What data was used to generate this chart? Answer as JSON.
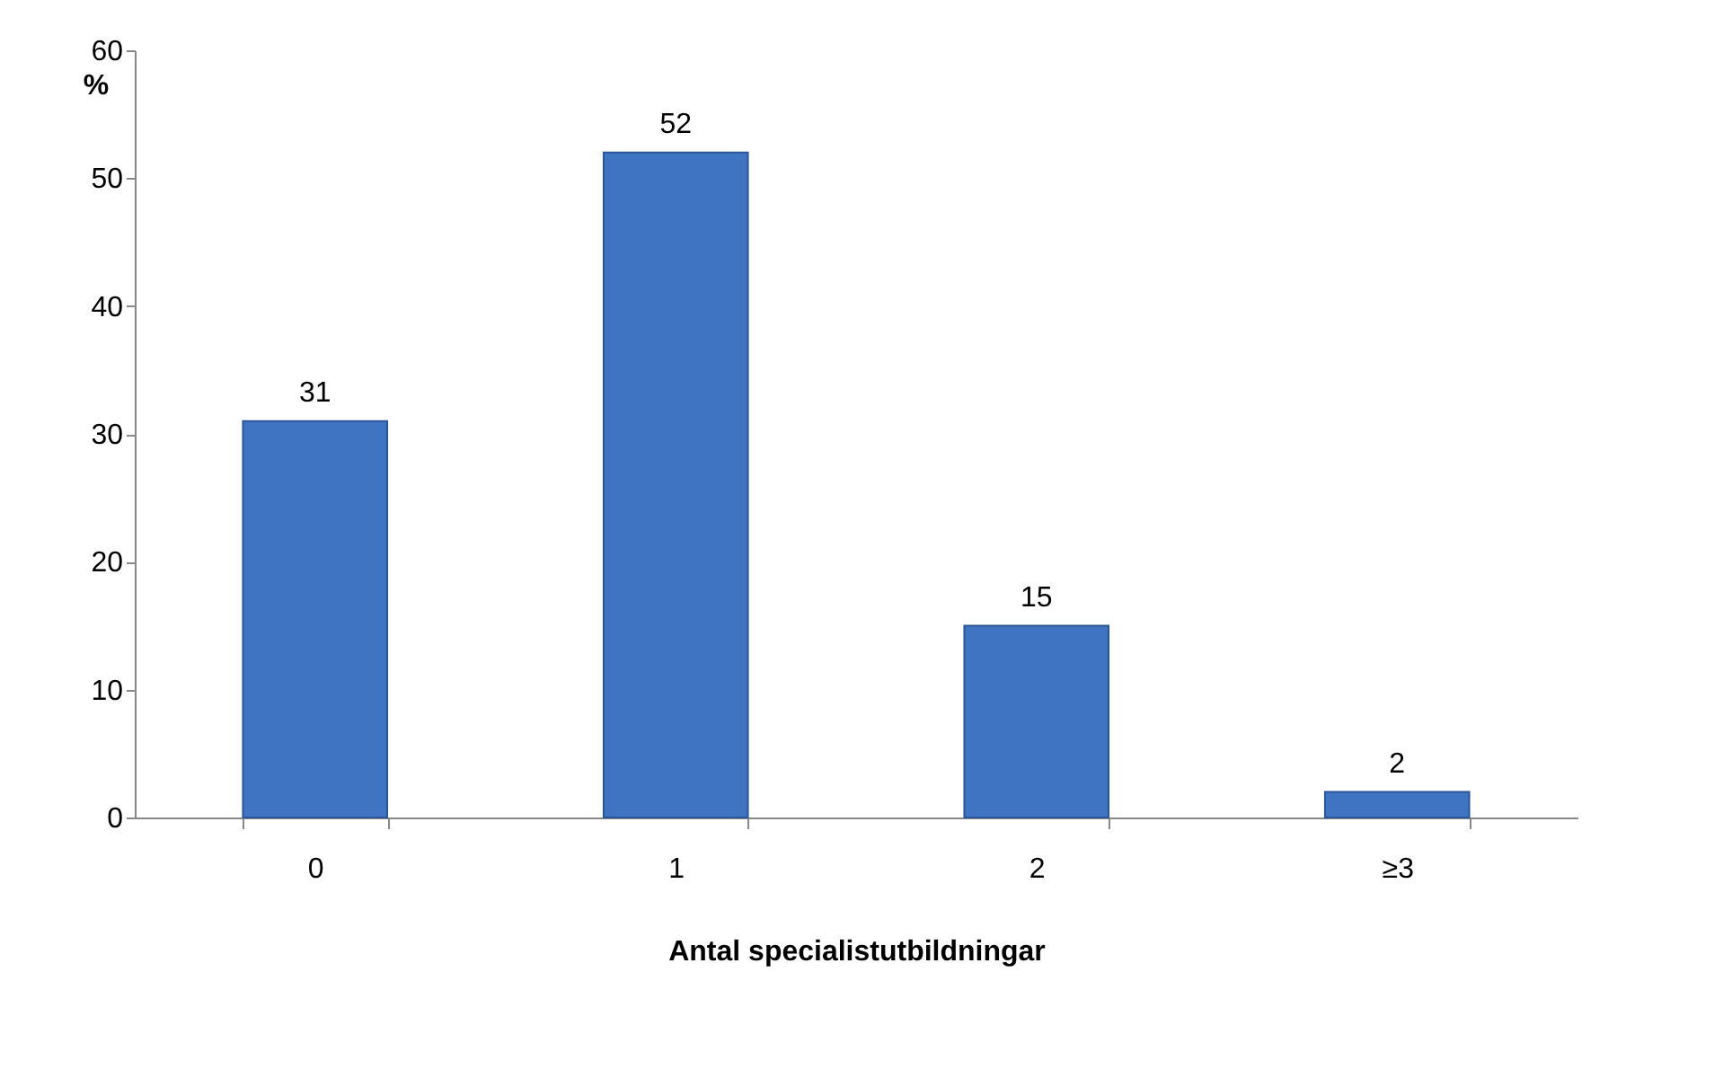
{
  "chart_data": {
    "type": "bar",
    "xlabel": "Antal specialistutbildningar",
    "ylabel": "%",
    "categories": [
      "0",
      "1",
      "2",
      "≥3"
    ],
    "values": [
      31,
      52,
      15,
      2
    ],
    "color": "#3f74c2",
    "ylim": [
      0,
      60
    ],
    "yticks": [
      0,
      10,
      20,
      30,
      40,
      50,
      60
    ],
    "grid": false,
    "data_labels": true
  }
}
